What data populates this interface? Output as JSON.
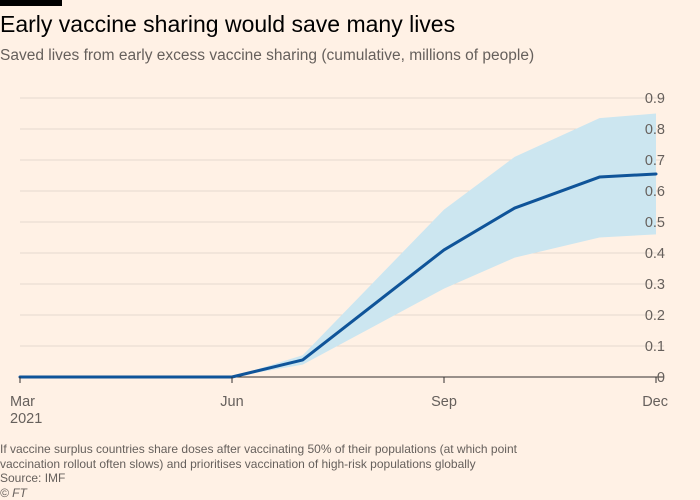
{
  "header": {
    "title": "Early vaccine sharing would save many lives",
    "subtitle": "Saved lives from early excess vaccine sharing (cumulative, millions of people)"
  },
  "chart_data": {
    "type": "line",
    "title": "Early vaccine sharing would save many lives",
    "subtitle": "Saved lives from early excess vaccine sharing (cumulative, millions of people)",
    "x_ticks": [
      {
        "label": "Mar",
        "label2": "2021",
        "month": 0
      },
      {
        "label": "Jun",
        "label2": "",
        "month": 3
      },
      {
        "label": "Sep",
        "label2": "",
        "month": 6
      },
      {
        "label": "Dec",
        "label2": "",
        "month": 9
      }
    ],
    "ylim": [
      0,
      0.9
    ],
    "y_ticks": [
      "0",
      "0.1",
      "0.2",
      "0.3",
      "0.4",
      "0.5",
      "0.6",
      "0.7",
      "0.8",
      "0.9"
    ],
    "grid": true,
    "series": [
      {
        "color": "#0f5499",
        "points": [
          {
            "month": 0,
            "y": 0
          },
          {
            "month": 3,
            "y": 0
          },
          {
            "month": 4,
            "y": 0.055
          },
          {
            "month": 6,
            "y": 0.41
          },
          {
            "month": 7,
            "y": 0.545
          },
          {
            "month": 8.2,
            "y": 0.645
          },
          {
            "month": 9,
            "y": 0.655
          }
        ]
      }
    ],
    "band": {
      "color": "#cce6f0",
      "points": [
        {
          "month": 3,
          "low": 0,
          "high": 0
        },
        {
          "month": 4,
          "low": 0.04,
          "high": 0.07
        },
        {
          "month": 6,
          "low": 0.285,
          "high": 0.54
        },
        {
          "month": 7,
          "low": 0.385,
          "high": 0.71
        },
        {
          "month": 8.2,
          "low": 0.45,
          "high": 0.835
        },
        {
          "month": 9,
          "low": 0.46,
          "high": 0.85
        }
      ]
    },
    "colors": {
      "background": "#fff1e5",
      "grid": "#e6d9ce",
      "axis": "#33302e",
      "line": "#0f5499",
      "band": "#cce6f0"
    }
  },
  "footer": {
    "note_line1": "If vaccine surplus countries share doses after vaccinating 50% of their populations (at which point",
    "note_line2": "vaccination rollout often slows) and prioritises vaccination of high-risk populations globally",
    "source": "Source: IMF",
    "credit": "© FT"
  }
}
